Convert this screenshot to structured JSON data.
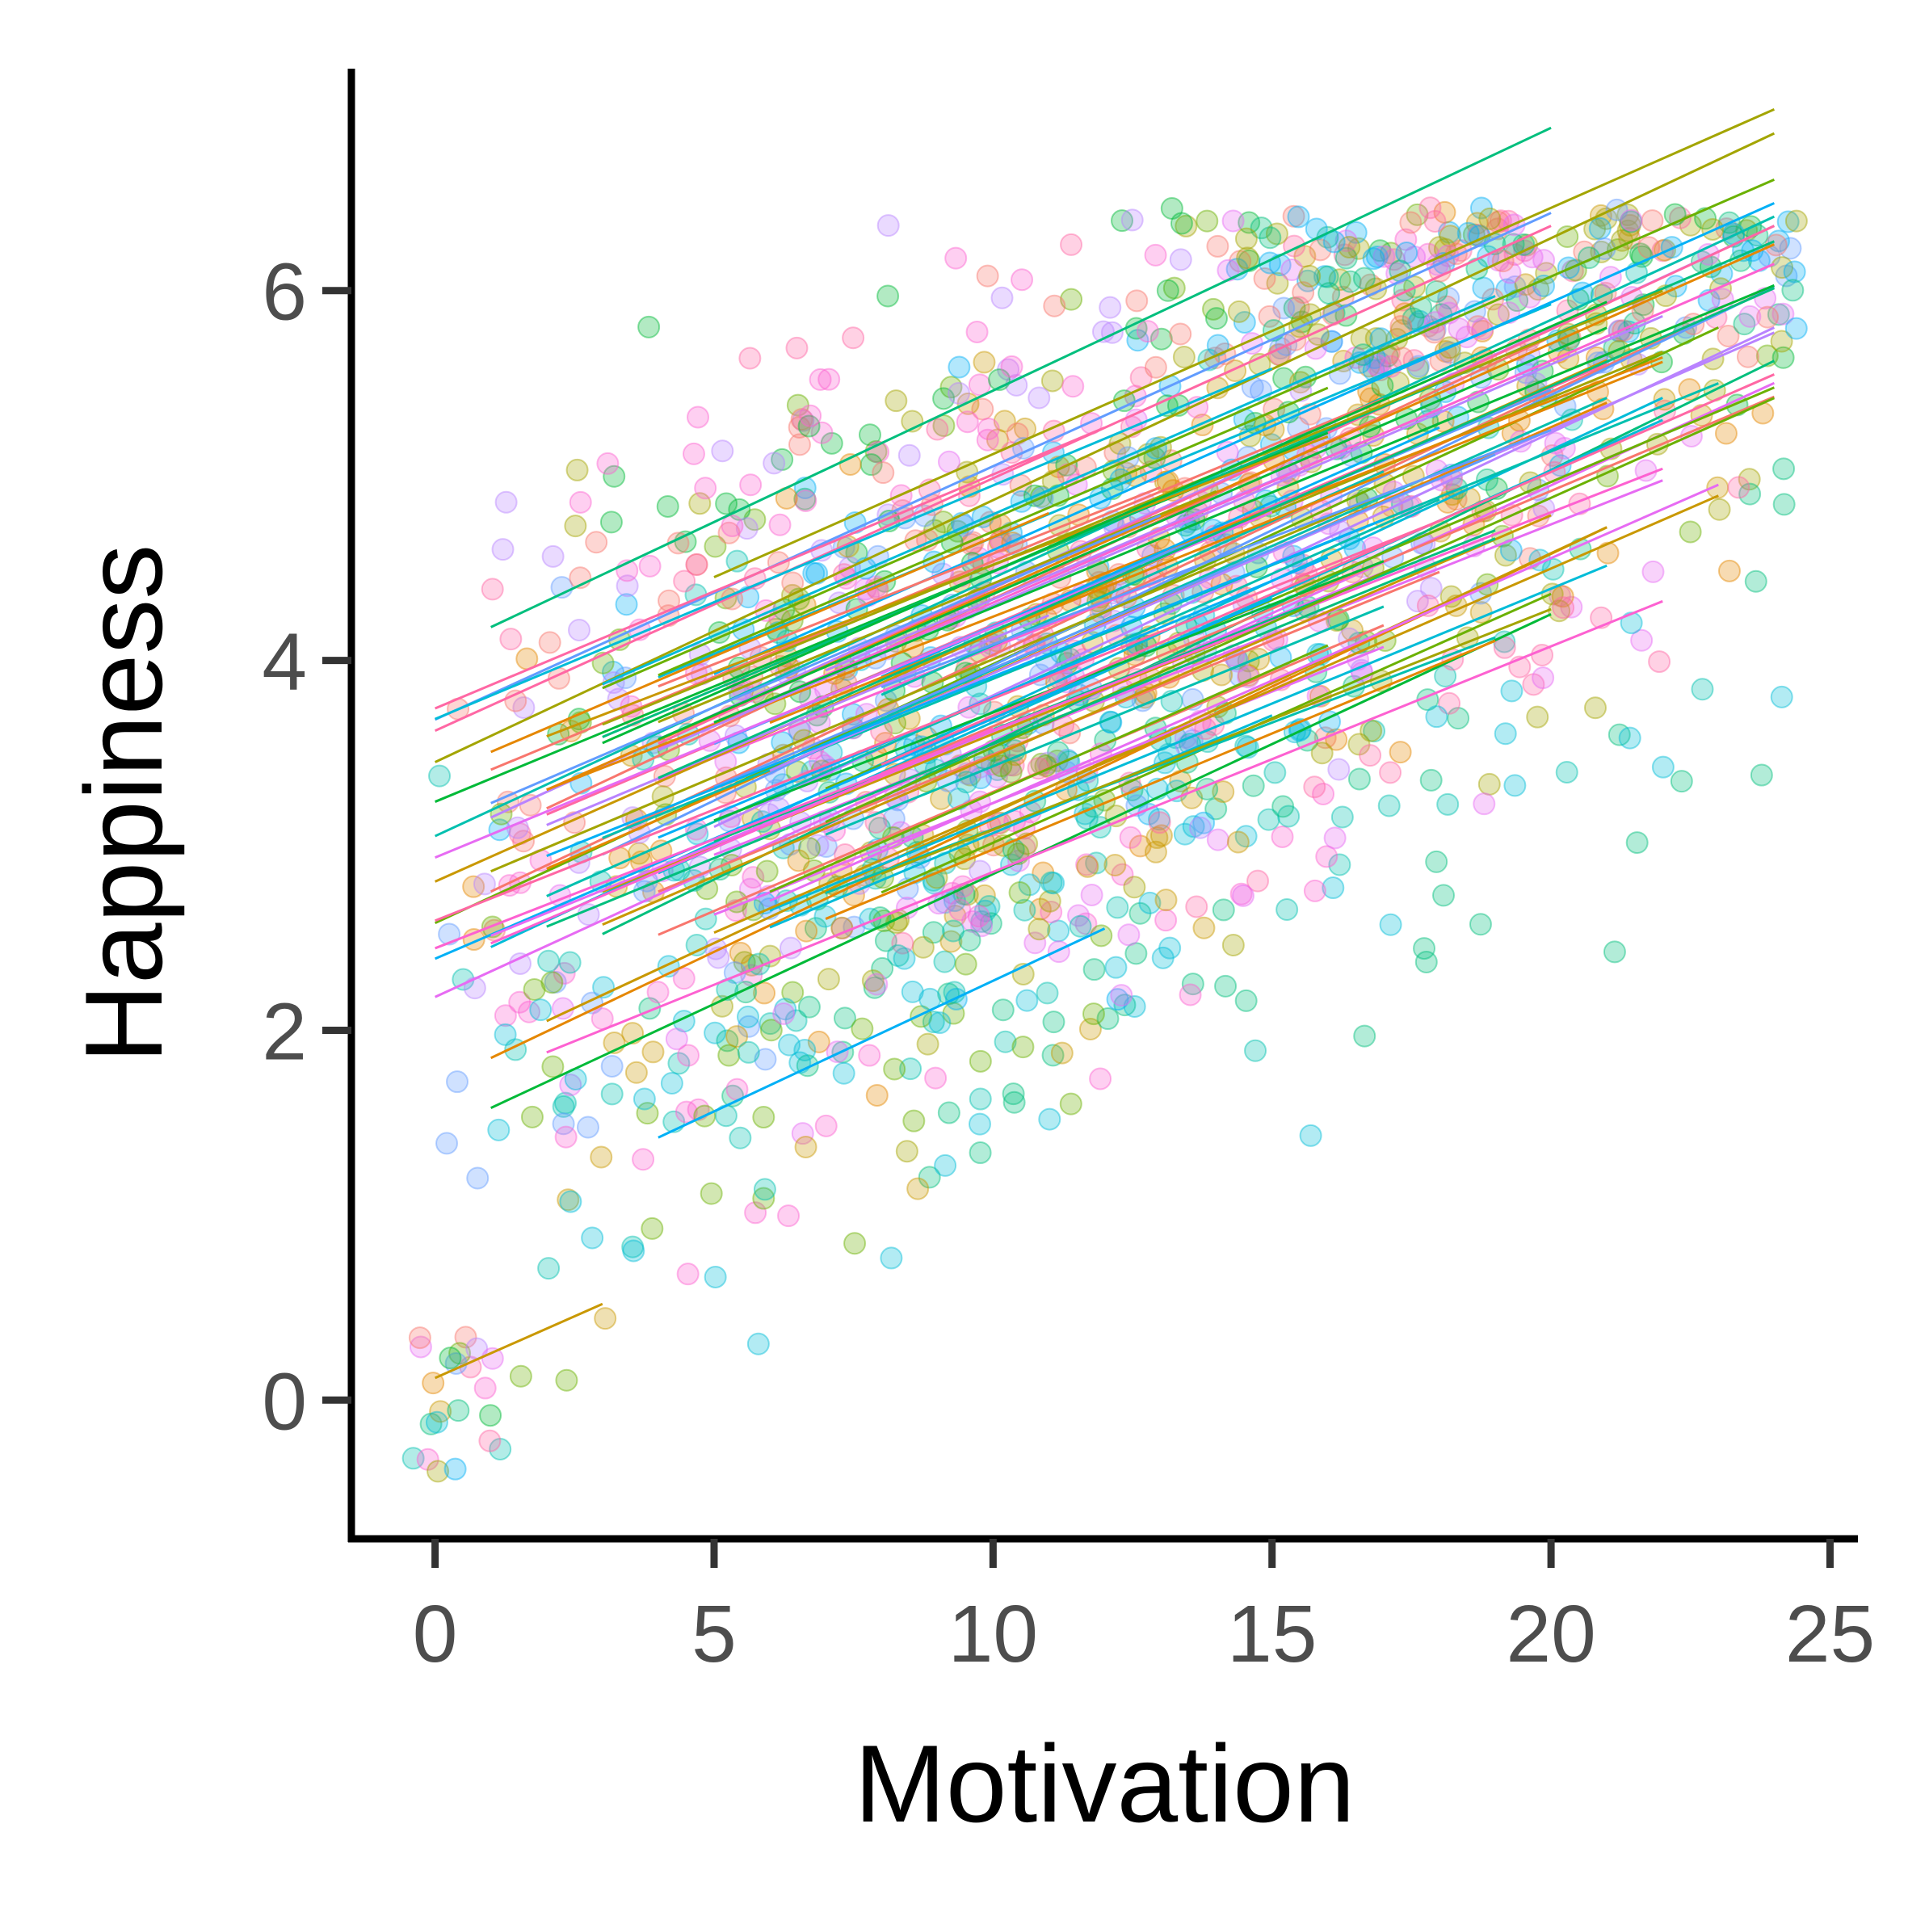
{
  "chart_data": {
    "type": "scatter",
    "title": "",
    "xlabel": "Motivation",
    "ylabel": "Happiness",
    "xlim": [
      -1.5,
      25.5
    ],
    "ylim": [
      -0.75,
      7.2
    ],
    "x_ticks": [
      0,
      5,
      10,
      15,
      20,
      25
    ],
    "x_tick_labels": [
      "0",
      "5",
      "10",
      "15",
      "20",
      "25"
    ],
    "y_ticks": [
      0,
      2,
      4,
      6
    ],
    "y_tick_labels": [
      "0",
      "2",
      "4",
      "6"
    ],
    "grid": false,
    "legend": "none",
    "point_alpha": 0.3,
    "n_groups": 60,
    "description_of_groups": "Each group (participant) has jittered points and a fitted regression line of Happiness on Motivation with a common slope of roughly 0.13.",
    "palette": [
      "#F8766D",
      "#E58700",
      "#C99800",
      "#A3A500",
      "#6BB100",
      "#00BA38",
      "#00BF7D",
      "#00C0AF",
      "#00BCD8",
      "#00B0F6",
      "#619CFF",
      "#B983FF",
      "#E76BF3",
      "#FD61D1",
      "#FF67A4"
    ],
    "regression_lines": [
      {
        "x": [
          0,
          3
        ],
        "y": [
          0.12,
          0.52
        ]
      },
      {
        "x": [
          1,
          20
        ],
        "y": [
          4.18,
          6.88
        ]
      },
      {
        "x": [
          0,
          20
        ],
        "y": [
          3.68,
          6.42
        ]
      },
      {
        "x": [
          0,
          20
        ],
        "y": [
          3.62,
          6.35
        ]
      },
      {
        "x": [
          0,
          24
        ],
        "y": [
          3.45,
          6.85
        ]
      },
      {
        "x": [
          0,
          24
        ],
        "y": [
          3.05,
          6.4
        ]
      },
      {
        "x": [
          1,
          24
        ],
        "y": [
          3.15,
          6.35
        ]
      },
      {
        "x": [
          1,
          24
        ],
        "y": [
          2.75,
          6.02
        ]
      },
      {
        "x": [
          0,
          23
        ],
        "y": [
          2.58,
          5.8
        ]
      },
      {
        "x": [
          1,
          22
        ],
        "y": [
          2.45,
          5.42
        ]
      },
      {
        "x": [
          0,
          24
        ],
        "y": [
          2.18,
          5.5
        ]
      },
      {
        "x": [
          1,
          21
        ],
        "y": [
          1.85,
          4.72
        ]
      },
      {
        "x": [
          1,
          20
        ],
        "y": [
          1.58,
          4.25
        ]
      },
      {
        "x": [
          4,
          12
        ],
        "y": [
          1.42,
          2.55
        ]
      },
      {
        "x": [
          2,
          22
        ],
        "y": [
          1.88,
          4.32
        ]
      },
      {
        "x": [
          2,
          21
        ],
        "y": [
          2.05,
          4.72
        ]
      },
      {
        "x": [
          3,
          24
        ],
        "y": [
          2.52,
          5.62
        ]
      },
      {
        "x": [
          3,
          24
        ],
        "y": [
          2.95,
          6.02
        ]
      },
      {
        "x": [
          4,
          24
        ],
        "y": [
          3.55,
          6.35
        ]
      },
      {
        "x": [
          5,
          24
        ],
        "y": [
          4.45,
          6.98
        ]
      },
      {
        "x": [
          7,
          21
        ],
        "y": [
          3.55,
          5.42
        ]
      },
      {
        "x": [
          5,
          24
        ],
        "y": [
          3.1,
          5.8
        ]
      },
      {
        "x": [
          2,
          20
        ],
        "y": [
          3.2,
          5.75
        ]
      },
      {
        "x": [
          3,
          24
        ],
        "y": [
          3.85,
          6.6
        ]
      },
      {
        "x": [
          4,
          22
        ],
        "y": [
          2.85,
          5.3
        ]
      },
      {
        "x": [
          6,
          23
        ],
        "y": [
          2.7,
          4.95
        ]
      },
      {
        "x": [
          2,
          24
        ],
        "y": [
          3.3,
          6.25
        ]
      }
    ],
    "cluster_centers": [
      {
        "x": 1,
        "y": 0
      },
      {
        "x": 3,
        "y": 3.4
      },
      {
        "x": 8,
        "y": 4.2
      },
      {
        "x": 11,
        "y": 4.1
      },
      {
        "x": 14,
        "y": 4.6
      },
      {
        "x": 17,
        "y": 5.1
      },
      {
        "x": 21,
        "y": 5.5
      },
      {
        "x": 23.5,
        "y": 5.9
      }
    ]
  }
}
